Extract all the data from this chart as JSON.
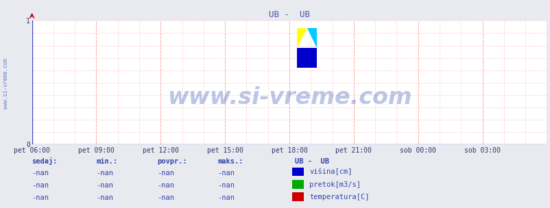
{
  "title": "UB -  UB",
  "title_color": "#4455aa",
  "bg_color": "#e8eaf0",
  "plot_bg_color": "#ffffff",
  "grid_color_minor": "#ffcccc",
  "grid_color_major": "#ffaaaa",
  "axis_color": "#4444cc",
  "arrow_color": "#cc0000",
  "ylim": [
    0,
    1
  ],
  "yticks": [
    0,
    1
  ],
  "xtick_labels": [
    "pet 06:00",
    "pet 09:00",
    "pet 12:00",
    "pet 15:00",
    "pet 18:00",
    "pet 21:00",
    "sob 00:00",
    "sob 03:00"
  ],
  "xtick_positions": [
    0,
    3,
    6,
    9,
    12,
    15,
    18,
    21
  ],
  "xmax": 24,
  "watermark": "www.si-vreme.com",
  "watermark_color": "#2244aa",
  "watermark_alpha": 0.3,
  "watermark_fontsize": 24,
  "sidebar_text": "www.si-vreme.com",
  "sidebar_color": "#4466bb",
  "legend_title": "UB -  UB",
  "legend_items": [
    {
      "label": "višina[cm]",
      "color": "#0000cc"
    },
    {
      "label": "pretok[m3/s]",
      "color": "#00aa00"
    },
    {
      "label": "temperatura[C]",
      "color": "#cc0000"
    }
  ],
  "table_headers": [
    "sedaj:",
    "min.:",
    "povpr.:",
    "maks.:"
  ],
  "table_values": [
    "-nan",
    "-nan",
    "-nan",
    "-nan"
  ],
  "table_color": "#3344aa",
  "tick_color": "#333366",
  "tick_fontsize": 7,
  "logo_yellow": "#ffff00",
  "logo_cyan": "#00ccff",
  "logo_blue": "#0000cc"
}
